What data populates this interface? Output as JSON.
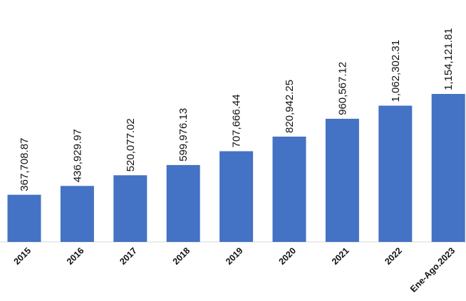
{
  "chart_data": {
    "type": "bar",
    "title": "",
    "xlabel": "",
    "ylabel": "",
    "categories": [
      "2015",
      "2016",
      "2017",
      "2018",
      "2019",
      "2020",
      "2021",
      "2022",
      "Ene-Ago.2023"
    ],
    "values": [
      367708.87,
      436929.97,
      520077.02,
      599976.13,
      707666.44,
      820942.25,
      960567.12,
      1062302.31,
      1154121.81
    ],
    "value_labels": [
      "367,708.87",
      "436,929.97",
      "520,077.02",
      "599,976.13",
      "707,666.44",
      "820,942.25",
      "960,567.12",
      "1,062,302.31",
      "1,154,121.81"
    ],
    "ylim": [
      0,
      1200000
    ],
    "grid": false,
    "legend": "none",
    "colors": {
      "bar": "#4472c4",
      "axis": "#d9d9d9"
    }
  }
}
